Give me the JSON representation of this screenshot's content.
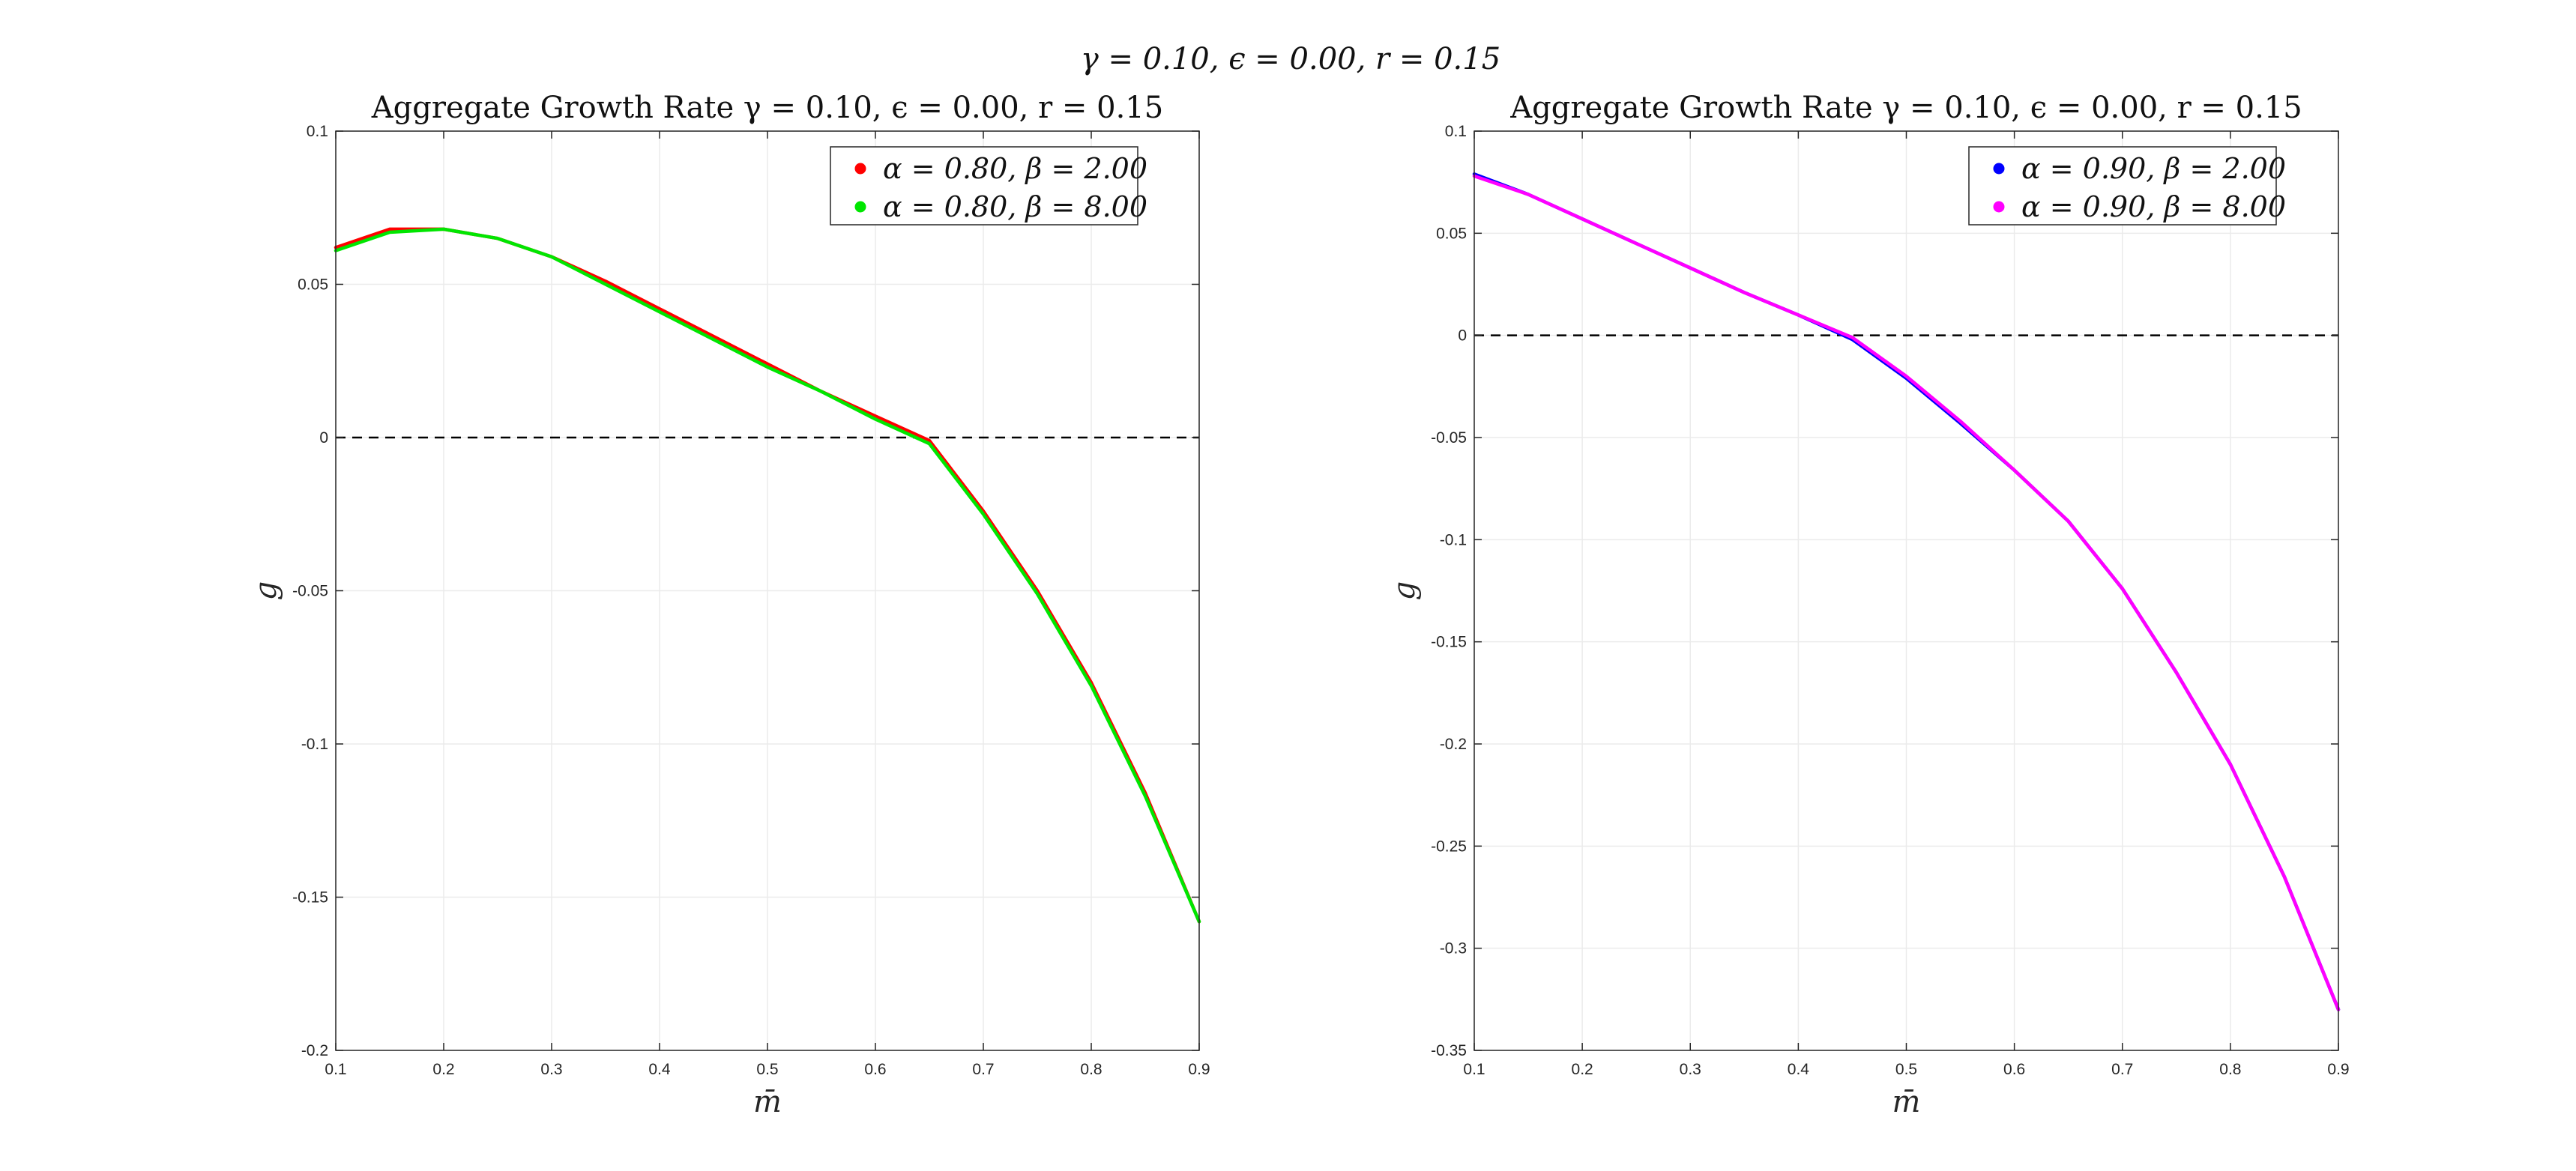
{
  "figure": {
    "suptitle": "γ = 0.10, ϵ = 0.00, r = 0.15"
  },
  "chart_data": [
    {
      "type": "line",
      "title": "Aggregate Growth Rate γ = 0.10, ϵ = 0.00, r = 0.15",
      "xlabel": "m̄",
      "ylabel": "g",
      "xlim": [
        0.1,
        0.9
      ],
      "ylim": [
        -0.2,
        0.1
      ],
      "xticks": [
        "0.1",
        "0.2",
        "0.3",
        "0.4",
        "0.5",
        "0.6",
        "0.7",
        "0.8",
        "0.9"
      ],
      "yticks": [
        "-0.2",
        "-0.15",
        "-0.1",
        "-0.05",
        "0",
        "0.05",
        "0.1"
      ],
      "grid": true,
      "legend_position": "top-right",
      "reference_line": {
        "y": 0,
        "style": "dashed",
        "color": "#000000"
      },
      "x": [
        0.1,
        0.15,
        0.2,
        0.25,
        0.3,
        0.35,
        0.4,
        0.45,
        0.5,
        0.55,
        0.6,
        0.65,
        0.7,
        0.75,
        0.8,
        0.85,
        0.9
      ],
      "series": [
        {
          "name": "α = 0.80, β = 2.00",
          "color": "#ff0000",
          "values": [
            0.062,
            0.068,
            0.068,
            0.065,
            0.059,
            0.051,
            0.042,
            0.033,
            0.024,
            0.015,
            0.007,
            -0.001,
            -0.024,
            -0.05,
            -0.08,
            -0.116,
            -0.158
          ]
        },
        {
          "name": "α = 0.80, β = 8.00",
          "color": "#00e600",
          "values": [
            0.061,
            0.067,
            0.068,
            0.065,
            0.059,
            0.05,
            0.041,
            0.032,
            0.023,
            0.015,
            0.006,
            -0.002,
            -0.025,
            -0.051,
            -0.081,
            -0.117,
            -0.158
          ]
        }
      ]
    },
    {
      "type": "line",
      "title": "Aggregate Growth Rate γ = 0.10, ϵ = 0.00, r = 0.15",
      "xlabel": "m̄",
      "ylabel": "g",
      "xlim": [
        0.1,
        0.9
      ],
      "ylim": [
        -0.35,
        0.1
      ],
      "xticks": [
        "0.1",
        "0.2",
        "0.3",
        "0.4",
        "0.5",
        "0.6",
        "0.7",
        "0.8",
        "0.9"
      ],
      "yticks": [
        "-0.35",
        "-0.3",
        "-0.25",
        "-0.2",
        "-0.15",
        "-0.1",
        "-0.05",
        "0",
        "0.05",
        "0.1"
      ],
      "grid": true,
      "legend_position": "top-right",
      "reference_line": {
        "y": 0,
        "style": "dashed",
        "color": "#000000"
      },
      "x": [
        0.1,
        0.15,
        0.2,
        0.25,
        0.3,
        0.35,
        0.4,
        0.45,
        0.5,
        0.55,
        0.6,
        0.65,
        0.7,
        0.75,
        0.8,
        0.85,
        0.9
      ],
      "series": [
        {
          "name": "α = 0.90, β = 2.00",
          "color": "#0000ff",
          "values": [
            0.079,
            0.069,
            0.057,
            0.045,
            0.033,
            0.021,
            0.01,
            -0.002,
            -0.021,
            -0.043,
            -0.066,
            -0.091,
            -0.124,
            -0.165,
            -0.21,
            -0.265,
            -0.33
          ]
        },
        {
          "name": "α = 0.90, β = 8.00",
          "color": "#ff00ff",
          "values": [
            0.078,
            0.069,
            0.057,
            0.045,
            0.033,
            0.021,
            0.01,
            -0.001,
            -0.02,
            -0.042,
            -0.066,
            -0.091,
            -0.124,
            -0.165,
            -0.21,
            -0.265,
            -0.33
          ]
        }
      ]
    }
  ]
}
